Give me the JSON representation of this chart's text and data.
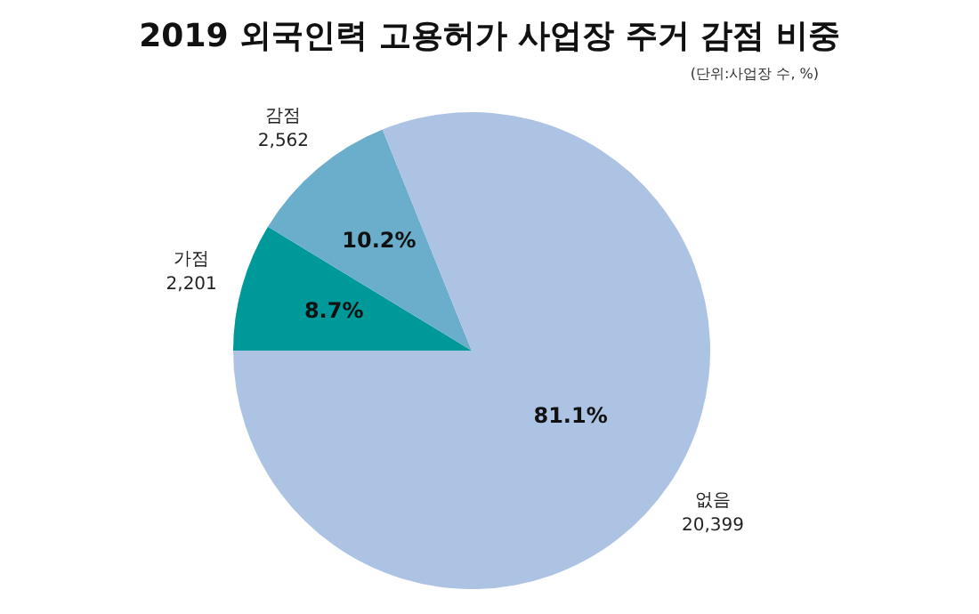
{
  "chart_data": {
    "type": "pie",
    "title": "2019 외국인력 고용허가 사업장 주거 감점 비중",
    "subtitle": "(단위:사업장 수, %)",
    "categories": [
      "가점\n2,201",
      "감점\n2,562",
      "없음\n20,399"
    ],
    "values": [
      8.7,
      10.2,
      81.1
    ],
    "value_labels": [
      "8.7%",
      "10.2%",
      "81.1%"
    ],
    "colors": [
      "#009999",
      "#6aaecb",
      "#adc3e4"
    ],
    "legend": false
  }
}
